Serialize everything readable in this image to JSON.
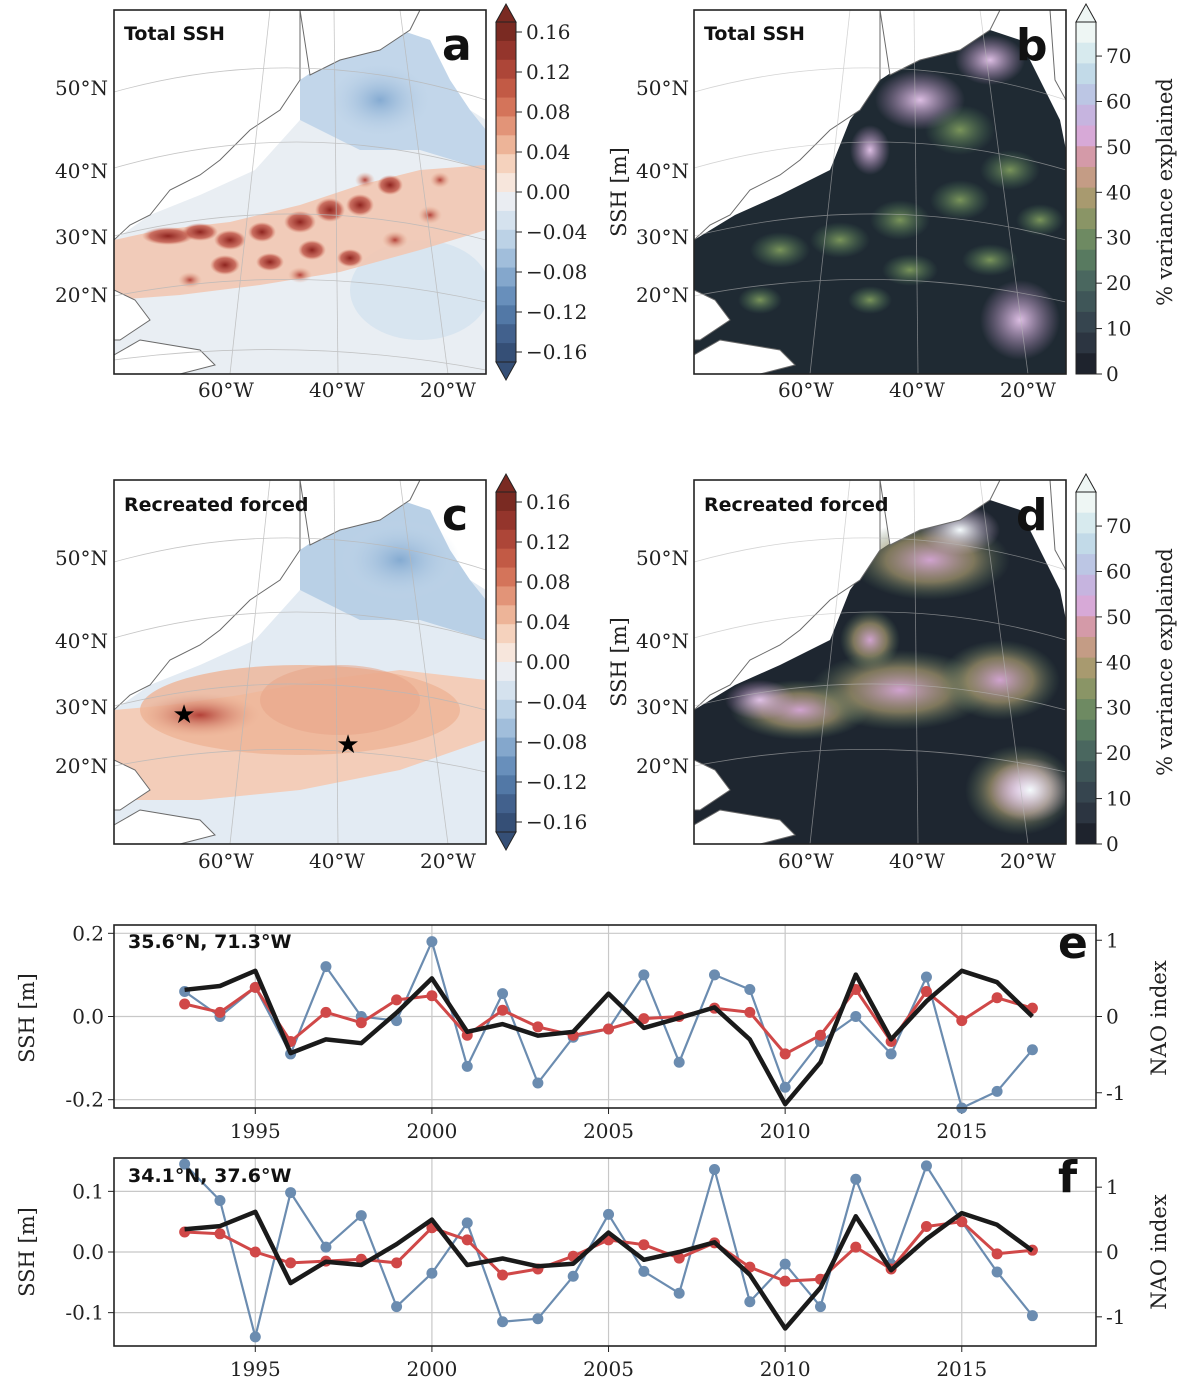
{
  "maps": [
    {
      "id": "a",
      "title": "Total SSH",
      "letter": "a",
      "kind": "ssh"
    },
    {
      "id": "b",
      "title": "Total SSH",
      "letter": "b",
      "kind": "variance"
    },
    {
      "id": "c",
      "title": "Recreated forced",
      "letter": "c",
      "kind": "ssh"
    },
    {
      "id": "d",
      "title": "Recreated forced",
      "letter": "d",
      "kind": "variance"
    }
  ],
  "map_axes": {
    "lat_labels": [
      "50°N",
      "40°N",
      "30°N",
      "20°N"
    ],
    "lon_labels": [
      "60°W",
      "40°W",
      "20°W"
    ]
  },
  "colorbars": {
    "ssh": {
      "label": "SSH [m]",
      "ticks": [
        "0.16",
        "0.12",
        "0.08",
        "0.04",
        "0.00",
        "−0.04",
        "−0.08",
        "−0.12",
        "−0.16"
      ],
      "colors": [
        "#7a2a22",
        "#94352c",
        "#ad4638",
        "#c25a45",
        "#d4745a",
        "#e29478",
        "#edb498",
        "#f5d2bd",
        "#f7e6dc",
        "#eaedf2",
        "#d5e2ee",
        "#bcd2e6",
        "#a1bedb",
        "#84a7cc",
        "#688fbb",
        "#5278a6",
        "#42618d",
        "#354f76"
      ]
    },
    "variance": {
      "label": "% variance explained",
      "ticks": [
        "70",
        "60",
        "50",
        "40",
        "30",
        "20",
        "10",
        "0"
      ],
      "colors": [
        "#eef6f4",
        "#d7eaee",
        "#c2dae8",
        "#bcc6e4",
        "#c6b4df",
        "#d7a9d7",
        "#d49aa8",
        "#c49c85",
        "#a89a6f",
        "#8a9566",
        "#6e8a62",
        "#587a60",
        "#4a675f",
        "#3f5658",
        "#36454f",
        "#2c3541",
        "#1e232d"
      ]
    }
  },
  "stars": [
    {
      "label": "35.6°N, 71.3°W"
    },
    {
      "label": "34.1°N, 37.6°W"
    }
  ],
  "chart_data": [
    {
      "type": "line",
      "panel": "e",
      "title": "35.6°N, 71.3°W",
      "ylabel": "SSH [m]",
      "y2label": "NAO index",
      "ylim": [
        -0.22,
        0.22
      ],
      "y2lim": [
        -1.2,
        1.2
      ],
      "xlim": [
        1991,
        2018.8
      ],
      "xticks": [
        1995,
        2000,
        2005,
        2010,
        2015
      ],
      "yticks": [
        {
          "v": 0.2,
          "t": "0.2"
        },
        {
          "v": 0.0,
          "t": "0.0"
        },
        {
          "v": -0.2,
          "t": "-0.2"
        }
      ],
      "y2ticks": [
        {
          "v": 1,
          "t": "1"
        },
        {
          "v": 0,
          "t": "0"
        },
        {
          "v": -1,
          "t": "-1"
        }
      ],
      "years": [
        1993,
        1994,
        1995,
        1996,
        1997,
        1998,
        1999,
        2000,
        2001,
        2002,
        2003,
        2004,
        2005,
        2006,
        2007,
        2008,
        2009,
        2010,
        2011,
        2012,
        2013,
        2014,
        2015,
        2016,
        2017
      ],
      "series": [
        {
          "color": "#6b8cb0",
          "axis": "left",
          "markers": true,
          "values": [
            0.06,
            0.0,
            0.07,
            -0.09,
            0.12,
            0.0,
            -0.01,
            0.18,
            -0.12,
            0.055,
            -0.16,
            -0.05,
            -0.03,
            0.1,
            -0.11,
            0.1,
            0.065,
            -0.17,
            -0.06,
            0.0,
            -0.09,
            0.095,
            -0.22,
            -0.18,
            -0.08
          ]
        },
        {
          "color": "#d04848",
          "axis": "left",
          "markers": true,
          "values": [
            0.03,
            0.01,
            0.07,
            -0.06,
            0.01,
            -0.015,
            0.04,
            0.05,
            -0.045,
            0.015,
            -0.025,
            -0.045,
            -0.03,
            -0.005,
            0.0,
            0.02,
            0.01,
            -0.09,
            -0.045,
            0.065,
            -0.06,
            0.06,
            -0.01,
            0.045,
            0.02
          ]
        },
        {
          "color": "#1a1a1a",
          "axis": "right",
          "markers": false,
          "values": [
            0.35,
            0.4,
            0.6,
            -0.48,
            -0.3,
            -0.35,
            0.05,
            0.5,
            -0.2,
            -0.1,
            -0.25,
            -0.2,
            0.3,
            -0.15,
            -0.02,
            0.12,
            -0.3,
            -1.15,
            -0.6,
            0.55,
            -0.3,
            0.2,
            0.6,
            0.45,
            0.0
          ]
        }
      ]
    },
    {
      "type": "line",
      "panel": "f",
      "title": "34.1°N, 37.6°W",
      "ylabel": "SSH [m]",
      "y2label": "NAO index",
      "ylim": [
        -0.155,
        0.155
      ],
      "y2lim": [
        -1.45,
        1.45
      ],
      "xlim": [
        1991,
        2018.8
      ],
      "xticks": [
        1995,
        2000,
        2005,
        2010,
        2015
      ],
      "yticks": [
        {
          "v": 0.1,
          "t": "0.1"
        },
        {
          "v": 0.0,
          "t": "0.0"
        },
        {
          "v": -0.1,
          "t": "-0.1"
        }
      ],
      "y2ticks": [
        {
          "v": 1,
          "t": "1"
        },
        {
          "v": 0,
          "t": "0"
        },
        {
          "v": -1,
          "t": "-1"
        }
      ],
      "years": [
        1993,
        1994,
        1995,
        1996,
        1997,
        1998,
        1999,
        2000,
        2001,
        2002,
        2003,
        2004,
        2005,
        2006,
        2007,
        2008,
        2009,
        2010,
        2011,
        2012,
        2013,
        2014,
        2015,
        2016,
        2017
      ],
      "series": [
        {
          "color": "#6b8cb0",
          "axis": "left",
          "markers": true,
          "values": [
            0.145,
            0.085,
            -0.14,
            0.098,
            0.008,
            0.06,
            -0.09,
            -0.035,
            0.048,
            -0.115,
            -0.11,
            -0.04,
            0.062,
            -0.032,
            -0.068,
            0.136,
            -0.082,
            -0.02,
            -0.09,
            0.12,
            -0.02,
            0.142,
            0.05,
            -0.033,
            -0.105
          ]
        },
        {
          "color": "#d04848",
          "axis": "left",
          "markers": true,
          "values": [
            0.033,
            0.03,
            0.0,
            -0.018,
            -0.015,
            -0.012,
            -0.018,
            0.04,
            0.02,
            -0.038,
            -0.028,
            -0.007,
            0.02,
            0.012,
            -0.01,
            0.015,
            -0.025,
            -0.048,
            -0.045,
            0.008,
            -0.028,
            0.042,
            0.05,
            -0.003,
            0.003
          ]
        },
        {
          "color": "#1a1a1a",
          "axis": "right",
          "markers": false,
          "values": [
            0.35,
            0.4,
            0.62,
            -0.48,
            -0.15,
            -0.2,
            0.12,
            0.5,
            -0.2,
            -0.1,
            -0.22,
            -0.18,
            0.3,
            -0.12,
            0.0,
            0.15,
            -0.35,
            -1.18,
            -0.55,
            0.55,
            -0.28,
            0.2,
            0.6,
            0.42,
            0.02
          ]
        }
      ]
    }
  ]
}
